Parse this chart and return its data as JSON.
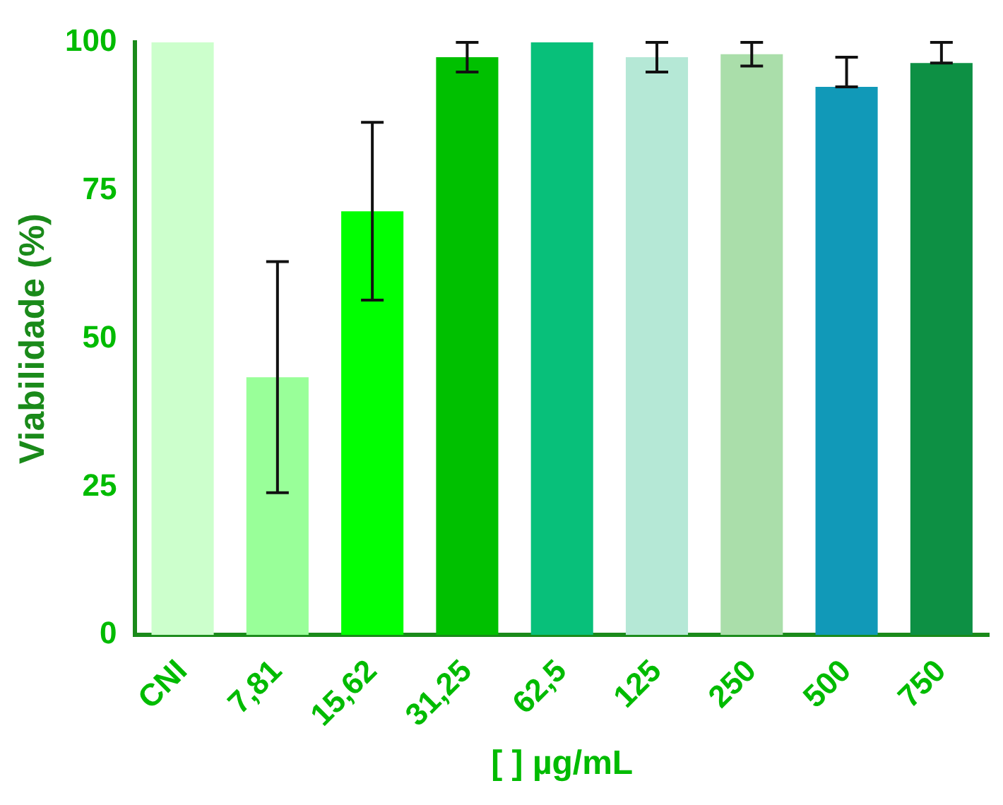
{
  "chart_data": {
    "type": "bar",
    "ylabel": "Viabilidade (%)",
    "xlabel": "[ ] µg/mL",
    "categories": [
      "CNI",
      "7,81",
      "15,62",
      "31,25",
      "62,5",
      "125",
      "250",
      "500",
      "750"
    ],
    "values": [
      100,
      43.5,
      71.5,
      97.5,
      100,
      97.5,
      98,
      92.5,
      96.5
    ],
    "colors": [
      "#ccffcc",
      "#99ff99",
      "#00ff00",
      "#00c000",
      "#08c07a",
      "#b5e8d6",
      "#aadeaa",
      "#1199b8",
      "#0d9044"
    ],
    "errors": [
      null,
      [
        24,
        63
      ],
      [
        56.5,
        86.5
      ],
      [
        95,
        100
      ],
      null,
      [
        95,
        100
      ],
      [
        96,
        100
      ],
      [
        92.5,
        97.5
      ],
      [
        96.5,
        100
      ]
    ],
    "ylim": [
      0,
      100
    ],
    "yticks": [
      0,
      25,
      50,
      75,
      100
    ],
    "grid": false,
    "legend": false
  }
}
